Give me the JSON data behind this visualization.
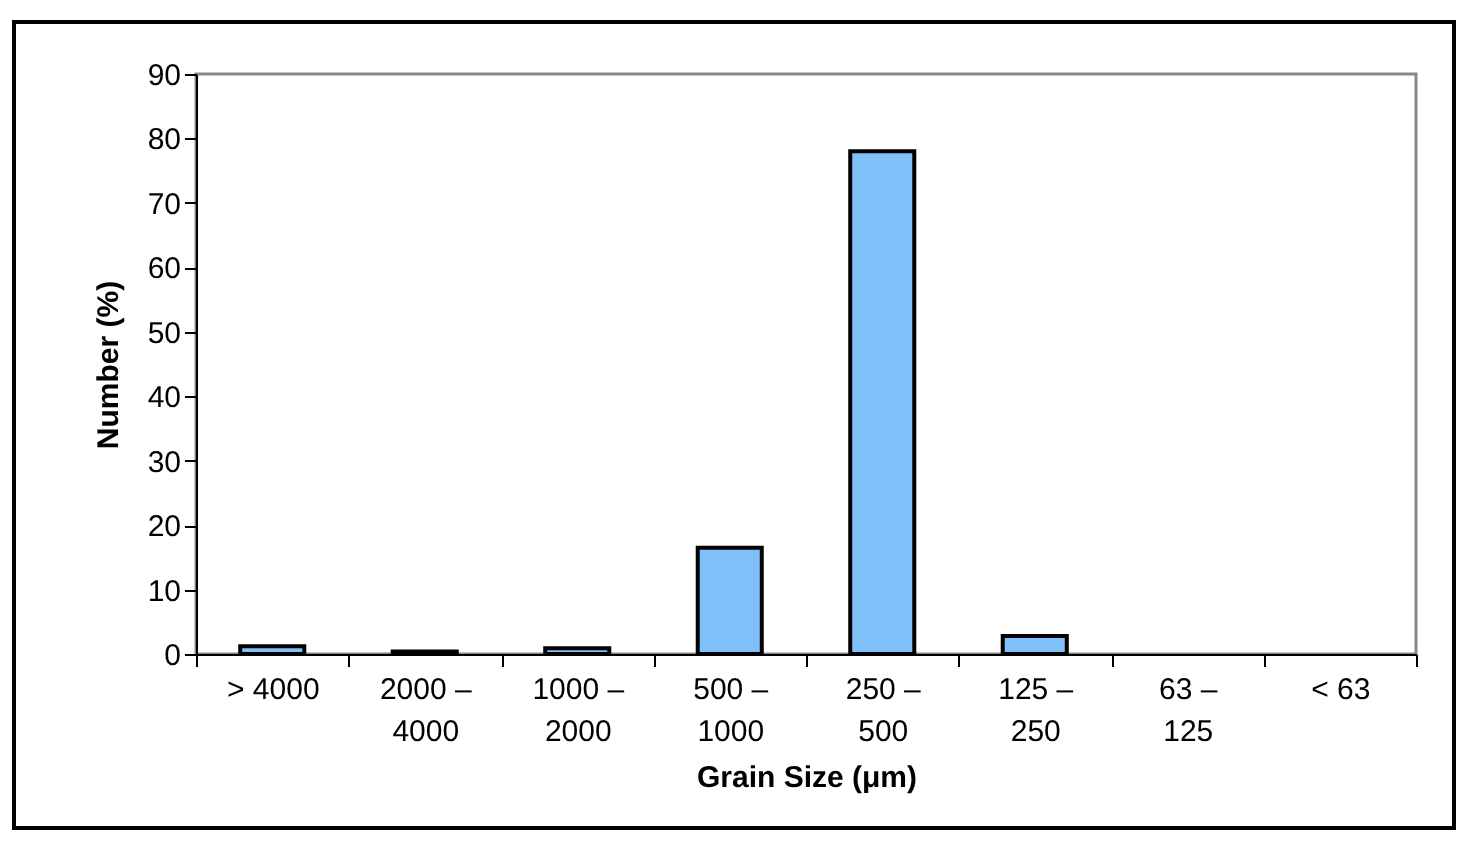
{
  "chart_data": {
    "type": "bar",
    "xlabel": "Grain Size (μm)",
    "ylabel": "Number (%)",
    "categories": [
      "> 4000",
      "2000 –\n4000",
      "1000 –\n2000",
      "500 –\n1000",
      "250 –\n500",
      "125 –\n250",
      "63 –\n125",
      "< 63"
    ],
    "values": [
      1.2,
      0.4,
      0.9,
      16.5,
      78,
      2.8,
      0,
      0
    ],
    "color": "#80c0f8",
    "ylim": [
      0,
      90
    ],
    "yticks": [
      0,
      10,
      20,
      30,
      40,
      50,
      60,
      70,
      80,
      90
    ],
    "grid": false
  }
}
